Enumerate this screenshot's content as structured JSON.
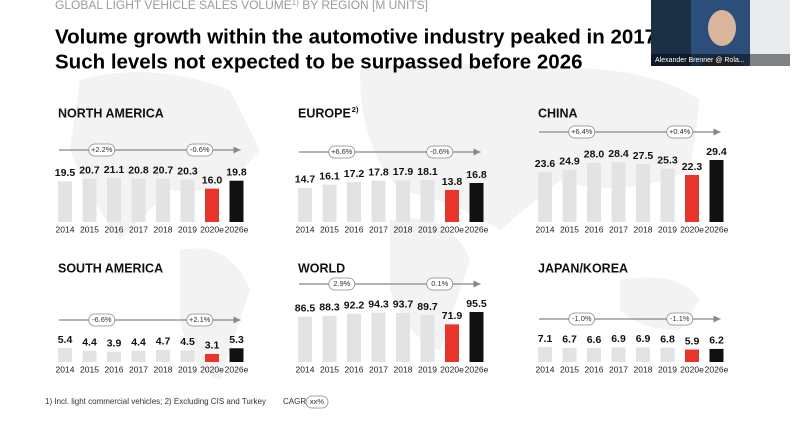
{
  "header": {
    "lead": "GLOBAL LIGHT VEHICLE SALES VOLUME",
    "note": "1)",
    "tail": " BY REGION [M UNITS]"
  },
  "title": [
    "Volume growth within the automotive industry peaked in 2017/",
    "Such levels not expected to be surpassed before 2026"
  ],
  "camera": {
    "name": "Alexander Brenner @ Rola..."
  },
  "footnote": "1) Incl. light commercial vehicles; 2) Excluding CIS and Turkey",
  "cagr_legend": {
    "label": "CAGR",
    "example": "xx%"
  },
  "chart_data": [
    {
      "type": "bar",
      "title": "NORTH AMERICA",
      "categories": [
        "2014",
        "2015",
        "2016",
        "2017",
        "2018",
        "2019",
        "2020e",
        "2026e"
      ],
      "values": [
        19.5,
        20.7,
        21.1,
        20.8,
        20.7,
        20.3,
        16.0,
        19.8
      ],
      "value_labels": [
        "19.5",
        "20.7",
        "21.1",
        "20.8",
        "20.7",
        "20.3",
        "16.0",
        "19.8"
      ],
      "colors": [
        "#e3e3e6",
        "#e3e3e6",
        "#e3e3e6",
        "#e3e3e6",
        "#e3e3e6",
        "#e3e3e6",
        "#e8352b",
        "#111111"
      ],
      "cagr": [
        "+2.2%",
        "-0.6%"
      ]
    },
    {
      "type": "bar",
      "title": "EUROPE",
      "title_note": "2)",
      "categories": [
        "2014",
        "2015",
        "2016",
        "2017",
        "2018",
        "2019",
        "2020e",
        "2026e"
      ],
      "values": [
        14.7,
        16.1,
        17.2,
        17.8,
        17.9,
        18.1,
        13.8,
        16.8
      ],
      "colors": [
        "#e3e3e6",
        "#e3e3e6",
        "#e3e3e6",
        "#e3e3e6",
        "#e3e3e6",
        "#e3e3e6",
        "#e8352b",
        "#111111"
      ],
      "cagr": [
        "+6.6%",
        "-0.6%"
      ]
    },
    {
      "type": "bar",
      "title": "CHINA",
      "categories": [
        "2014",
        "2015",
        "2016",
        "2017",
        "2018",
        "2019",
        "2020e",
        "2026e"
      ],
      "values": [
        23.6,
        24.9,
        28.0,
        28.4,
        27.5,
        25.3,
        22.3,
        29.4
      ],
      "value_labels": [
        "23.6",
        "24.9",
        "28.0",
        "28.4",
        "27.5",
        "25.3",
        "22.3",
        "29.4"
      ],
      "colors": [
        "#e3e3e6",
        "#e3e3e6",
        "#e3e3e6",
        "#e3e3e6",
        "#e3e3e6",
        "#e3e3e6",
        "#e8352b",
        "#111111"
      ],
      "cagr": [
        "+6.4%",
        "+0.4%"
      ]
    },
    {
      "type": "bar",
      "title": "SOUTH AMERICA",
      "categories": [
        "2014",
        "2015",
        "2016",
        "2017",
        "2018",
        "2019",
        "2020e",
        "2026e"
      ],
      "values": [
        5.4,
        4.4,
        3.9,
        4.4,
        4.7,
        4.5,
        3.1,
        5.3
      ],
      "colors": [
        "#e3e3e6",
        "#e3e3e6",
        "#e3e3e6",
        "#e3e3e6",
        "#e3e3e6",
        "#e3e3e6",
        "#e8352b",
        "#111111"
      ],
      "cagr": [
        "-6.6%",
        "+2.1%"
      ]
    },
    {
      "type": "bar",
      "title": "WORLD",
      "title_color": "#3a9ad9",
      "categories": [
        "2014",
        "2015",
        "2016",
        "2017",
        "2018",
        "2019",
        "2020e",
        "2026e"
      ],
      "values": [
        86.5,
        88.3,
        92.2,
        94.3,
        93.7,
        89.7,
        71.9,
        95.5
      ],
      "colors": [
        "#e3e3e6",
        "#e3e3e6",
        "#e3e3e6",
        "#e3e3e6",
        "#e3e3e6",
        "#e3e3e6",
        "#e8352b",
        "#111111"
      ],
      "cagr": [
        "2.9%",
        "0.1%"
      ]
    },
    {
      "type": "bar",
      "title": "JAPAN/KOREA",
      "categories": [
        "2014",
        "2015",
        "2016",
        "2017",
        "2018",
        "2019",
        "2020e",
        "2026e"
      ],
      "values": [
        7.1,
        6.7,
        6.6,
        6.9,
        6.9,
        6.8,
        5.9,
        6.2
      ],
      "colors": [
        "#e3e3e6",
        "#e3e3e6",
        "#e3e3e6",
        "#e3e3e6",
        "#e3e3e6",
        "#e3e3e6",
        "#e8352b",
        "#111111"
      ],
      "cagr": [
        "-1.0%",
        "-1.1%"
      ]
    }
  ]
}
